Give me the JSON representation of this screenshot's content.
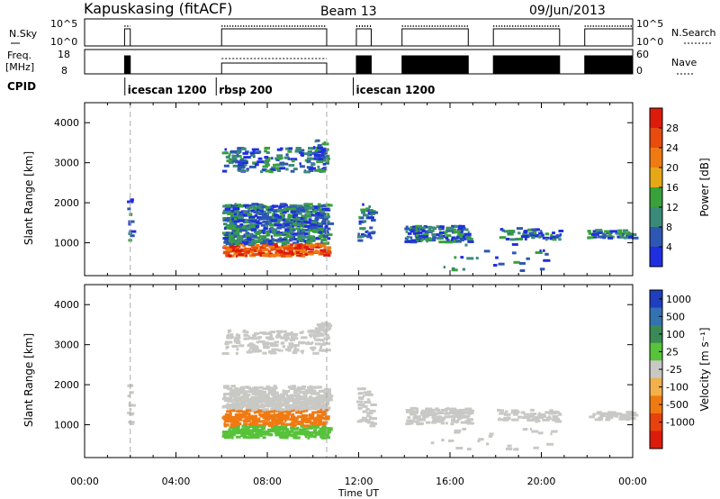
{
  "header": {
    "station": "Kapuskasing (fitACF)",
    "beam": "Beam 13",
    "date": "09/Jun/2013"
  },
  "strip_labels": {
    "nsky": "N.Sky",
    "nsearch": "N.Search",
    "freq": "Freq.",
    "freq_unit": "[MHz]",
    "nave": "Nave",
    "cpid": "CPID",
    "sky_ticks": [
      "10^5",
      "10^0"
    ],
    "freq_ticks": [
      "18",
      "8"
    ],
    "nave_ticks": [
      "60",
      "0"
    ]
  },
  "cpid_modes": [
    {
      "label": "icescan 1200",
      "start_hour": 2.0
    },
    {
      "label": "rbsp 200",
      "start_hour": 6.0
    },
    {
      "label": "icescan 1200",
      "start_hour": 12.0
    }
  ],
  "chart_data": [
    {
      "type": "heatmap",
      "title": "Power",
      "ylabel": "Slant Range [km]",
      "xlabel": "",
      "xlim": [
        0,
        24
      ],
      "ylim": [
        180,
        4500
      ],
      "yticks": [
        1000,
        2000,
        3000,
        4000
      ],
      "colorbar": {
        "label": "Power [dB]",
        "ticks": [
          "4",
          "8",
          "12",
          "16",
          "20",
          "24",
          "28"
        ],
        "colors": [
          "#1f2fe0",
          "#2e57b3",
          "#3a8a7a",
          "#39a13a",
          "#e6a817",
          "#f07a12",
          "#e84c0e",
          "#dd1b0b"
        ]
      }
    },
    {
      "type": "heatmap",
      "title": "Velocity",
      "ylabel": "Slant Range [km]",
      "xlabel": "Time UT",
      "xlim": [
        0,
        24
      ],
      "ylim": [
        180,
        4500
      ],
      "yticks": [
        1000,
        2000,
        3000,
        4000
      ],
      "xticks": [
        "00:00",
        "04:00",
        "08:00",
        "12:00",
        "16:00",
        "20:00",
        "00:00"
      ],
      "colorbar": {
        "label": "Velocity [m s⁻¹]",
        "ticks": [
          "1000",
          "500",
          "100",
          "25",
          "-25",
          "-100",
          "-500",
          "-1000"
        ],
        "colors": [
          "#1f3fbf",
          "#3372b0",
          "#3b8a56",
          "#57c23a",
          "#c8c8c4",
          "#f2b14a",
          "#f07a12",
          "#e8420e",
          "#dd1b0b"
        ]
      }
    }
  ]
}
